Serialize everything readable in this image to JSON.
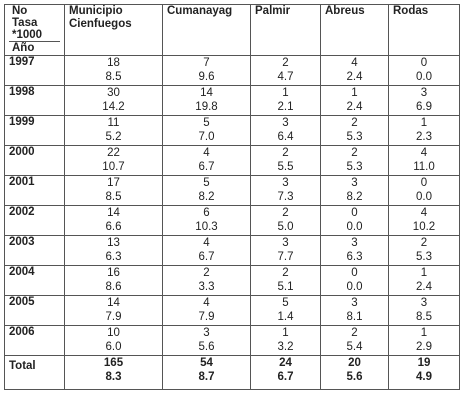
{
  "header": {
    "corner": [
      "No",
      "Tasa",
      "*1000"
    ],
    "corner_sub": "Año",
    "columns": [
      "Municipio Cienfuegos",
      "Cumanayag",
      "Palmir",
      "Abreus",
      "Rodas"
    ]
  },
  "rows": [
    {
      "year": "1997",
      "cells": [
        [
          "18",
          "8.5"
        ],
        [
          "7",
          "9.6"
        ],
        [
          "2",
          "4.7"
        ],
        [
          "4",
          "2.4"
        ],
        [
          "0",
          "0.0"
        ]
      ]
    },
    {
      "year": "1998",
      "cells": [
        [
          "30",
          "14.2"
        ],
        [
          "14",
          "19.8"
        ],
        [
          "1",
          "2.1"
        ],
        [
          "1",
          "2.4"
        ],
        [
          "3",
          "6.9"
        ]
      ]
    },
    {
      "year": "1999",
      "cells": [
        [
          "11",
          "5.2"
        ],
        [
          "5",
          "7.0"
        ],
        [
          "3",
          "6.4"
        ],
        [
          "2",
          "5.3"
        ],
        [
          "1",
          "2.3"
        ]
      ]
    },
    {
      "year": "2000",
      "cells": [
        [
          "22",
          "10.7"
        ],
        [
          "4",
          "6.7"
        ],
        [
          "2",
          "5.5"
        ],
        [
          "2",
          "5.3"
        ],
        [
          "4",
          "11.0"
        ]
      ]
    },
    {
      "year": "2001",
      "cells": [
        [
          "17",
          "8.5"
        ],
        [
          "5",
          "8.2"
        ],
        [
          "3",
          "7.3"
        ],
        [
          "3",
          "8.2"
        ],
        [
          "0",
          "0.0"
        ]
      ]
    },
    {
      "year": "2002",
      "cells": [
        [
          "14",
          "6.6"
        ],
        [
          "6",
          "10.3"
        ],
        [
          "2",
          "5.0"
        ],
        [
          "0",
          "0.0"
        ],
        [
          "4",
          "10.2"
        ]
      ]
    },
    {
      "year": "2003",
      "cells": [
        [
          "13",
          "6.3"
        ],
        [
          "4",
          "6.7"
        ],
        [
          "3",
          "7.7"
        ],
        [
          "3",
          "6.3"
        ],
        [
          "2",
          "5.3"
        ]
      ]
    },
    {
      "year": "2004",
      "cells": [
        [
          "16",
          "8.6"
        ],
        [
          "2",
          "3.3"
        ],
        [
          "2",
          "5.1"
        ],
        [
          "0",
          "0.0"
        ],
        [
          "1",
          "2.4"
        ]
      ]
    },
    {
      "year": "2005",
      "cells": [
        [
          "14",
          "7.9"
        ],
        [
          "4",
          "7.9"
        ],
        [
          "5",
          "1.4"
        ],
        [
          "3",
          "8.1"
        ],
        [
          "3",
          "8.5"
        ]
      ]
    },
    {
      "year": "2006",
      "cells": [
        [
          "10",
          "6.0"
        ],
        [
          "3",
          "5.6"
        ],
        [
          "1",
          "3.2"
        ],
        [
          "2",
          "5.4"
        ],
        [
          "1",
          "2.9"
        ]
      ]
    },
    {
      "year": "Total",
      "total": true,
      "cells": [
        [
          "165",
          "8.3"
        ],
        [
          "54",
          "8.7"
        ],
        [
          "24",
          "6.7"
        ],
        [
          "20",
          "5.6"
        ],
        [
          "19",
          "4.9"
        ]
      ]
    }
  ]
}
